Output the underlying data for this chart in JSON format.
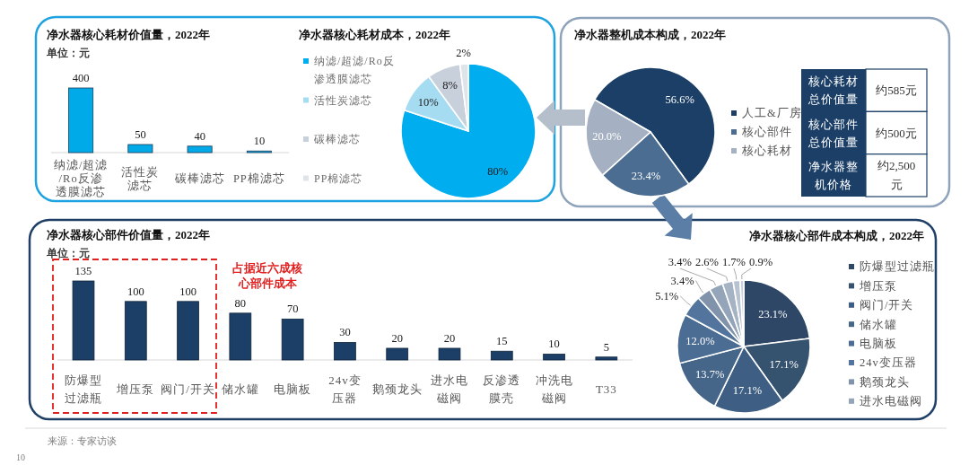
{
  "chart_data": [
    {
      "type": "bar",
      "title": "净水器核心耗材价值量，2022年",
      "subtitle": "单位：元",
      "categories": [
        "纳滤/超滤/Ro反渗透膜滤芯",
        "活性炭滤芯",
        "碳棒滤芯",
        "PP棉滤芯"
      ],
      "values": [
        400,
        50,
        40,
        10
      ],
      "color": "#00a9e8",
      "data_labels": true,
      "tick_labels": "x"
    },
    {
      "type": "pie",
      "title": "净水器核心耗材成本，2022年",
      "categories": [
        "纳滤/超滤/Ro反渗透膜滤芯",
        "活性炭滤芯",
        "碳棒滤芯",
        "PP棉滤芯"
      ],
      "values": [
        80,
        10,
        8,
        2
      ],
      "colors": [
        "#00aeef",
        "#a6dcf2",
        "#c8d0db",
        "#dfe4ea"
      ],
      "value_labels": [
        "80%",
        "10%",
        "8%",
        "2%"
      ],
      "legend": "left"
    },
    {
      "type": "pie",
      "title": "净水器整机成本构成，2022年",
      "categories": [
        "人工&厂房",
        "核心部件",
        "核心耗材"
      ],
      "values": [
        56.6,
        23.4,
        20.0
      ],
      "colors": [
        "#1b3f66",
        "#4b6d91",
        "#a5b1c2"
      ],
      "value_labels": [
        "56.6%",
        "23.4%",
        "20.0%"
      ],
      "legend": "right"
    },
    {
      "type": "other",
      "annotations": [
        "核心耗材总价值量",
        "约585元",
        "核心部件总价值量",
        "约500元",
        "净水器整机价格",
        "约2,500元"
      ]
    },
    {
      "type": "bar",
      "title": "净水器核心部件价值量，2022年",
      "subtitle": "单位：元",
      "categories": [
        "防爆型过滤瓶",
        "增压泵",
        "阀门/开关",
        "储水罐",
        "电脑板",
        "24v变压器",
        "鹅颈龙头",
        "进水电磁阀",
        "反渗透膜壳",
        "冲洗电磁阀",
        "T33"
      ],
      "values": [
        135,
        100,
        100,
        80,
        70,
        30,
        20,
        20,
        15,
        10,
        5
      ],
      "color": "#1b3f66",
      "data_labels": true,
      "tick_labels": "x",
      "annotations": [
        "占据近六成核心部件成本",
        "来源：专家访谈",
        "10"
      ]
    },
    {
      "type": "pie",
      "title": "净水器核心部件成本构成，2022年",
      "categories": [
        "防爆型过滤瓶",
        "增压泵",
        "阀门/开关",
        "储水罐",
        "电脑板",
        "24v变压器",
        "鹅颈龙头",
        "进水电磁阀",
        null,
        null,
        null
      ],
      "values": [
        23.1,
        17.1,
        17.1,
        13.7,
        12.0,
        5.1,
        3.4,
        3.4,
        2.6,
        1.7,
        0.9
      ],
      "colors": [
        "#2e4766",
        "#35526f",
        "#3e5e83",
        "#456689",
        "#4b6d94",
        "#53759d",
        "#8193ab",
        "#94a4b9",
        "#a5b3c5",
        "#b8c3d1",
        "#c9d1dc"
      ],
      "value_labels": [
        "23.1%",
        "17.1%",
        "17.1%",
        "13.7%",
        "12.0%",
        "5.1%",
        "3.4%",
        "3.4%",
        "2.6%",
        "1.7%",
        "0.9%"
      ],
      "legend": "right"
    }
  ]
}
